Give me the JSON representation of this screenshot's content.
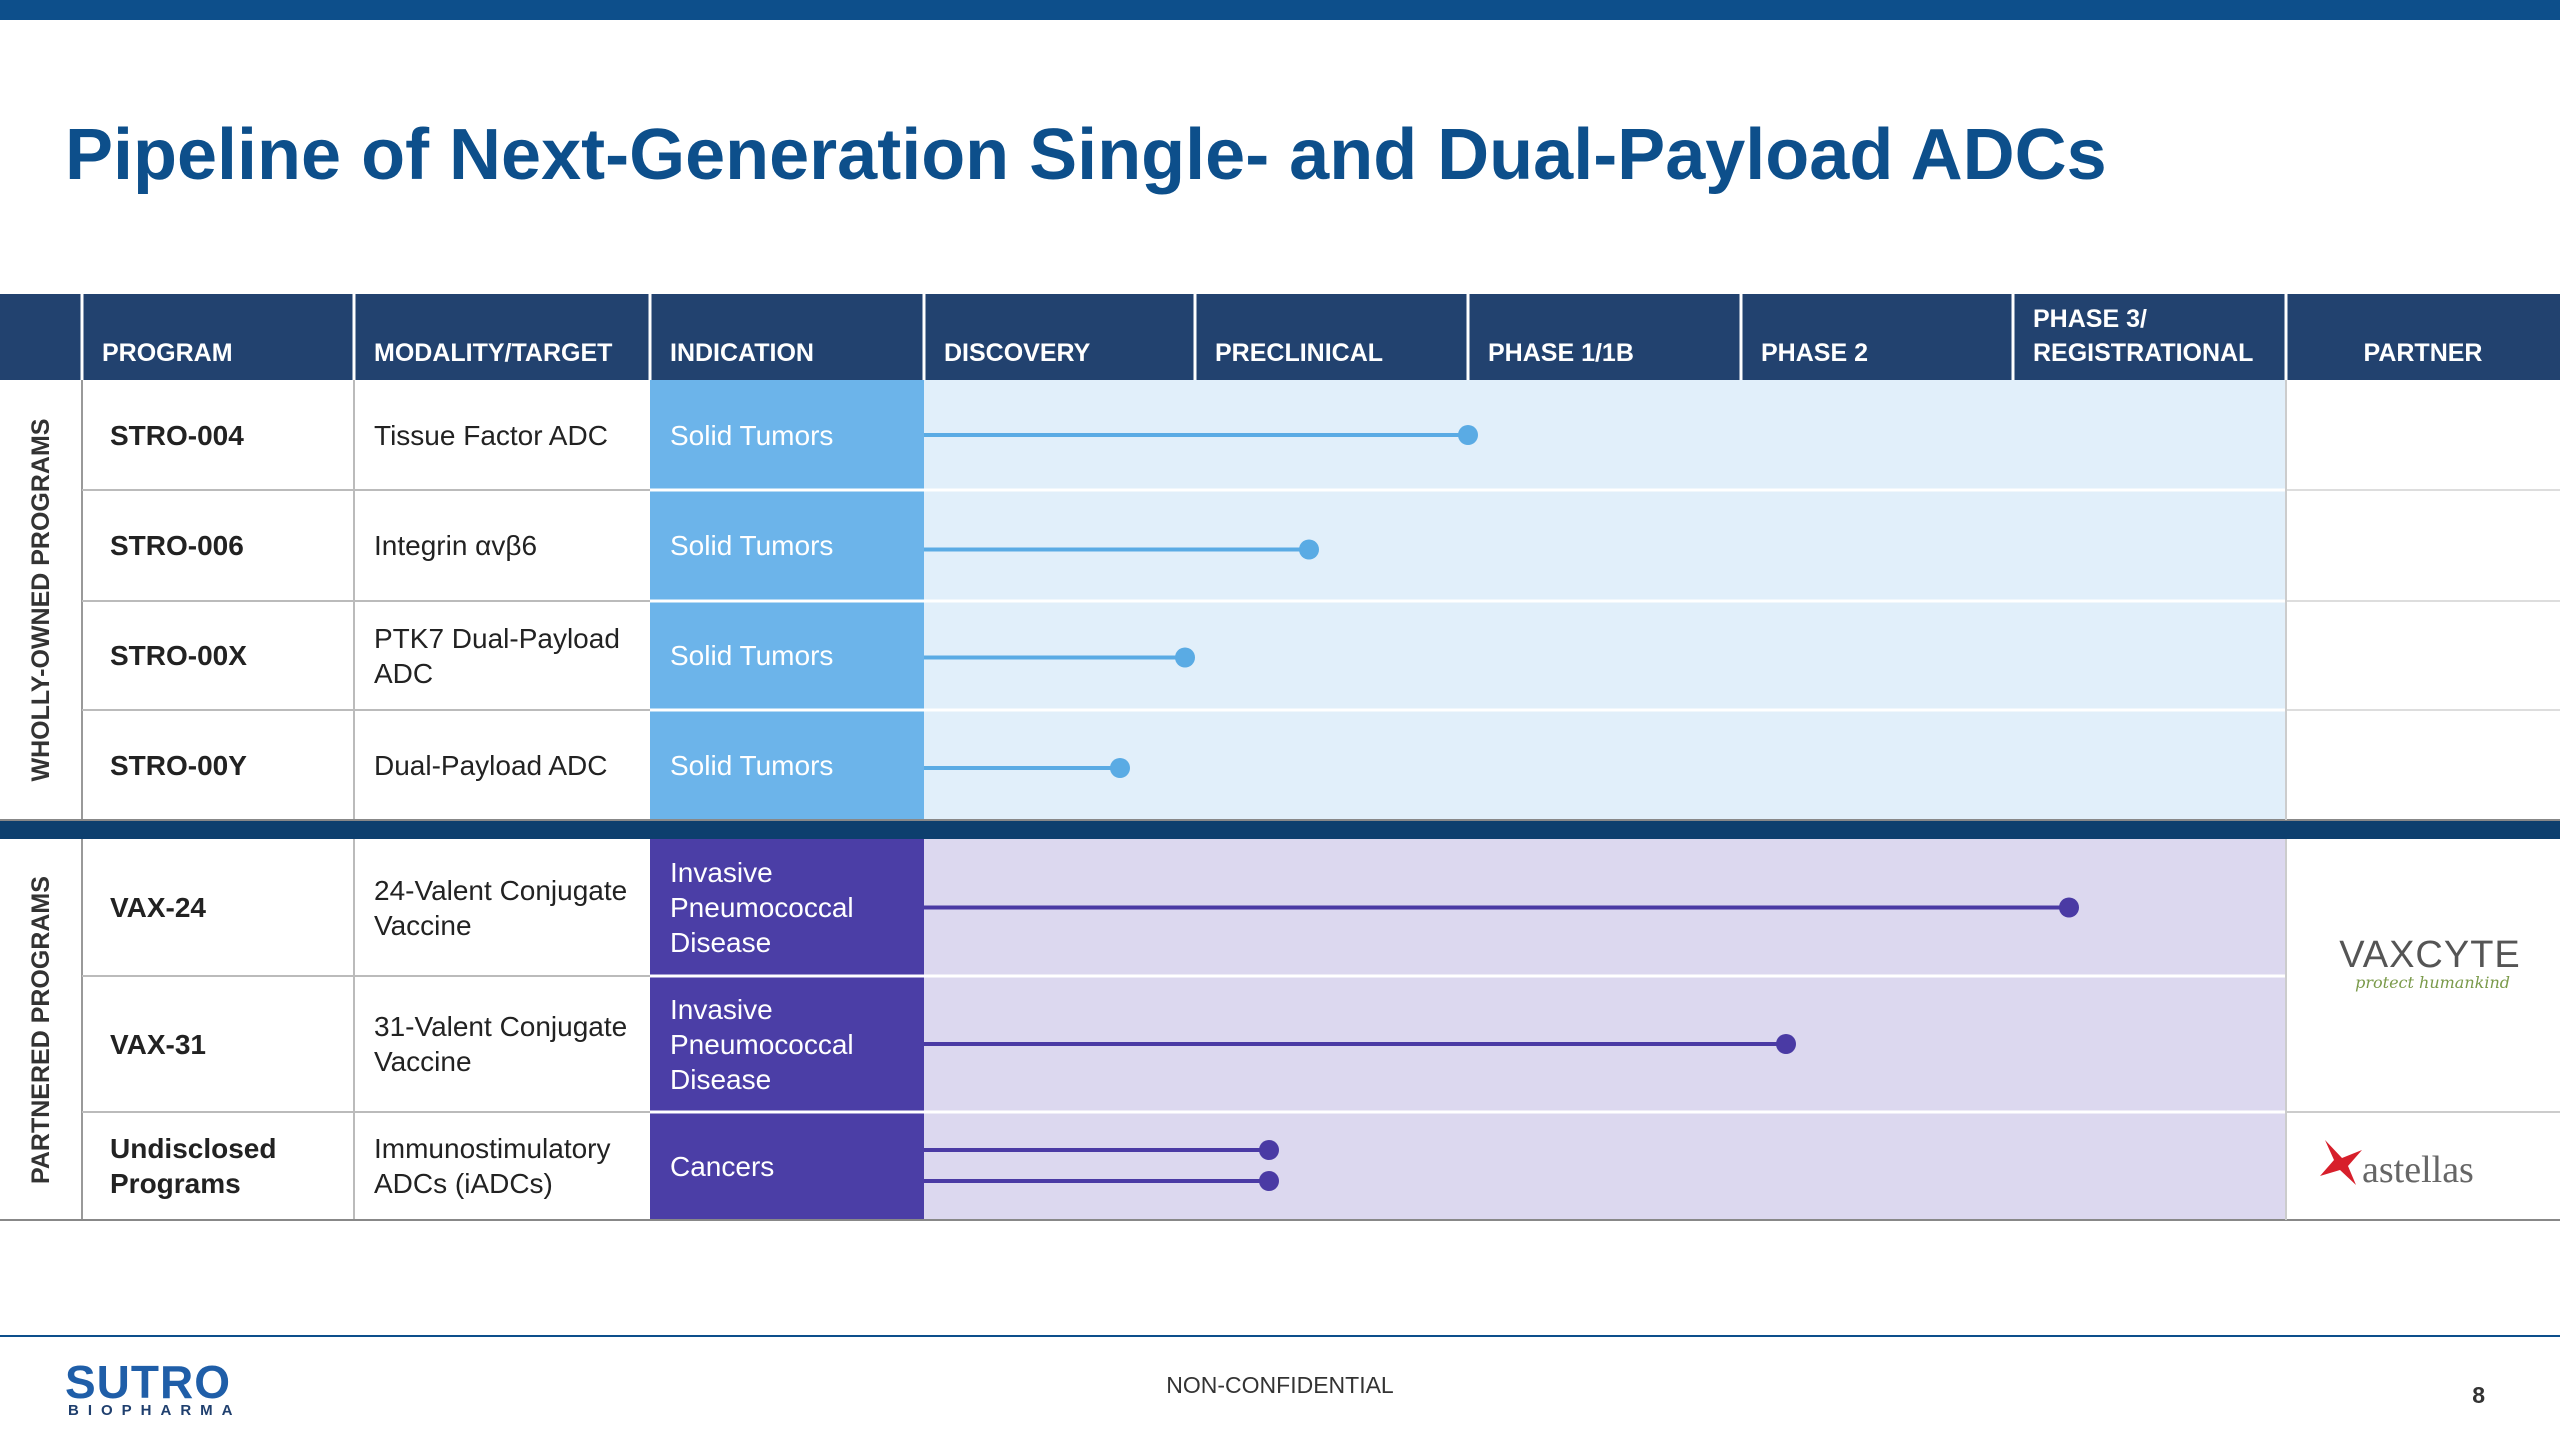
{
  "header": {
    "title": "Pipeline of Next-Generation Single- and Dual-Payload ADCs"
  },
  "table": {
    "columns": [
      "PROGRAM",
      "MODALITY/TARGET",
      "INDICATION",
      "DISCOVERY",
      "PRECLINICAL",
      "PHASE 1/1B",
      "PHASE 2",
      "PHASE 3/\nREGISTRATIONAL",
      "PARTNER"
    ],
    "groups": [
      {
        "label": "WHOLLY-OWNED PROGRAMS",
        "rows": [
          {
            "program": "STRO-004",
            "modality": "Tissue Factor ADC",
            "indication": "Solid Tumors"
          },
          {
            "program": "STRO-006",
            "modality": "Integrin αvβ6",
            "indication": "Solid Tumors"
          },
          {
            "program": "STRO-00X",
            "modality": "PTK7 Dual-Payload ADC",
            "indication": "Solid Tumors"
          },
          {
            "program": "STRO-00Y",
            "modality": "Dual-Payload ADC",
            "indication": "Solid Tumors"
          }
        ]
      },
      {
        "label": "PARTNERED PROGRAMS",
        "rows": [
          {
            "program": "VAX-24",
            "modality": "24-Valent Conjugate Vaccine",
            "indication": "Invasive Pneumococcal Disease"
          },
          {
            "program": "VAX-31",
            "modality": "31-Valent Conjugate Vaccine",
            "indication": "Invasive Pneumococcal Disease"
          },
          {
            "program": "Undisclosed Programs",
            "modality": "Immunostimulatory ADCs (iADCs)",
            "indication": "Cancers"
          }
        ]
      }
    ]
  },
  "partners": [
    {
      "name": "VAXCYTE",
      "tagline": "protect humankind"
    },
    {
      "name": "astellas"
    }
  ],
  "footer": {
    "logo": "SUTRO",
    "logo_sub": "BIOPHARMA",
    "label": "NON-CONFIDENTIAL",
    "page": 8
  }
}
